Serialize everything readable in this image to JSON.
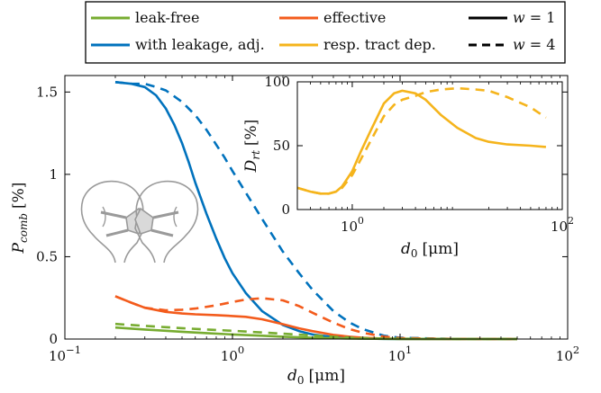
{
  "legend": {
    "items": [
      {
        "label": "leak-free",
        "color": "#77ac30",
        "dash": false
      },
      {
        "label": "effective",
        "color": "#f35b1c",
        "dash": false
      },
      {
        "label": "w = 1",
        "color": "#000000",
        "dash": false
      },
      {
        "label": "with leakage, adj.",
        "color": "#0072bd",
        "dash": false
      },
      {
        "label": "resp. tract dep.",
        "color": "#f5b41c",
        "dash": false
      },
      {
        "label": "w = 4",
        "color": "#000000",
        "dash": true
      }
    ]
  },
  "icons": [
    "head-with-mask-icon",
    "head-with-mask-icon"
  ],
  "chart_data": [
    {
      "type": "line",
      "id": "main",
      "xlabel_var": "d",
      "xlabel_sub": "0",
      "xlabel_unit": "[μm]",
      "ylabel_var": "P",
      "ylabel_sub": "comb",
      "ylabel_unit": "[%]",
      "xscale": "log",
      "xlim": [
        0.1,
        100
      ],
      "ylim": [
        0,
        1.6
      ],
      "xticks": [
        {
          "v": 0.1,
          "base": "10",
          "exp": "−1"
        },
        {
          "v": 1,
          "base": "10",
          "exp": "0"
        },
        {
          "v": 10,
          "base": "10",
          "exp": "1"
        },
        {
          "v": 100,
          "base": "10",
          "exp": "2"
        }
      ],
      "yticks": [
        {
          "v": 0,
          "label": "0"
        },
        {
          "v": 0.5,
          "label": "0.5"
        },
        {
          "v": 1,
          "label": "1"
        },
        {
          "v": 1.5,
          "label": "1.5"
        }
      ],
      "grid": false,
      "series": [
        {
          "name": "with leakage, adj.",
          "w": 1,
          "color": "#0072bd",
          "dash": false,
          "x": [
            0.2,
            0.25,
            0.3,
            0.35,
            0.4,
            0.45,
            0.5,
            0.55,
            0.6,
            0.7,
            0.8,
            0.9,
            1.0,
            1.2,
            1.5,
            2,
            2.5,
            3,
            4,
            5,
            6,
            8,
            10,
            15,
            20,
            50
          ],
          "y": [
            1.56,
            1.55,
            1.53,
            1.48,
            1.4,
            1.3,
            1.19,
            1.07,
            0.95,
            0.76,
            0.61,
            0.49,
            0.4,
            0.28,
            0.17,
            0.085,
            0.048,
            0.028,
            0.012,
            0.006,
            0.003,
            0.001,
            0.0005,
            0.0002,
            0.0001,
            0.0
          ]
        },
        {
          "name": "with leakage, adj.",
          "w": 4,
          "color": "#0072bd",
          "dash": true,
          "x": [
            0.2,
            0.25,
            0.3,
            0.35,
            0.4,
            0.5,
            0.6,
            0.7,
            0.8,
            0.9,
            1.0,
            1.2,
            1.5,
            2,
            2.5,
            3,
            4,
            5,
            6,
            8,
            10,
            20,
            50
          ],
          "y": [
            1.56,
            1.55,
            1.55,
            1.53,
            1.51,
            1.44,
            1.36,
            1.27,
            1.18,
            1.1,
            1.02,
            0.89,
            0.73,
            0.53,
            0.4,
            0.3,
            0.17,
            0.1,
            0.06,
            0.02,
            0.008,
            0.001,
            0.0
          ]
        },
        {
          "name": "effective",
          "w": 1,
          "color": "#f35b1c",
          "dash": false,
          "x": [
            0.2,
            0.25,
            0.3,
            0.4,
            0.5,
            0.6,
            0.8,
            1.0,
            1.2,
            1.5,
            2,
            2.5,
            3,
            4,
            5,
            6,
            8,
            10,
            20,
            50
          ],
          "y": [
            0.26,
            0.22,
            0.19,
            0.165,
            0.155,
            0.15,
            0.145,
            0.14,
            0.135,
            0.12,
            0.09,
            0.065,
            0.048,
            0.025,
            0.014,
            0.008,
            0.003,
            0.001,
            0.0,
            0.0
          ]
        },
        {
          "name": "effective",
          "w": 4,
          "color": "#f35b1c",
          "dash": true,
          "x": [
            0.2,
            0.25,
            0.3,
            0.4,
            0.5,
            0.6,
            0.8,
            1.0,
            1.2,
            1.5,
            2,
            2.5,
            3,
            4,
            5,
            6,
            8,
            10,
            20,
            50
          ],
          "y": [
            0.26,
            0.22,
            0.19,
            0.175,
            0.178,
            0.185,
            0.205,
            0.225,
            0.24,
            0.248,
            0.235,
            0.2,
            0.16,
            0.1,
            0.06,
            0.038,
            0.015,
            0.006,
            0.001,
            0.0
          ]
        },
        {
          "name": "leak-free",
          "w": 1,
          "color": "#77ac30",
          "dash": false,
          "x": [
            0.2,
            0.3,
            0.4,
            0.5,
            0.7,
            1.0,
            1.5,
            2,
            3,
            4,
            5,
            7,
            10,
            20,
            50
          ],
          "y": [
            0.07,
            0.058,
            0.05,
            0.044,
            0.036,
            0.028,
            0.02,
            0.014,
            0.008,
            0.005,
            0.003,
            0.0015,
            0.0007,
            0.0002,
            0.0
          ]
        },
        {
          "name": "leak-free",
          "w": 4,
          "color": "#77ac30",
          "dash": true,
          "x": [
            0.2,
            0.3,
            0.4,
            0.5,
            0.7,
            1.0,
            1.5,
            2,
            3,
            4,
            5,
            7,
            10,
            20,
            50
          ],
          "y": [
            0.092,
            0.08,
            0.072,
            0.066,
            0.058,
            0.05,
            0.04,
            0.033,
            0.022,
            0.014,
            0.009,
            0.004,
            0.0015,
            0.0003,
            0.0
          ]
        }
      ]
    },
    {
      "type": "line",
      "id": "inset",
      "xlabel_var": "d",
      "xlabel_sub": "0",
      "xlabel_unit": "[μm]",
      "ylabel_var": "D",
      "ylabel_sub": "rt",
      "ylabel_unit": "[%]",
      "xscale": "log",
      "xlim": [
        0.3,
        100
      ],
      "ylim": [
        0,
        100
      ],
      "xticks": [
        {
          "v": 1,
          "base": "10",
          "exp": "0"
        },
        {
          "v": 100,
          "base": "10",
          "exp": "2"
        }
      ],
      "yticks": [
        {
          "v": 0,
          "label": "0"
        },
        {
          "v": 50,
          "label": "50"
        },
        {
          "v": 100,
          "label": "100"
        }
      ],
      "grid": false,
      "series": [
        {
          "name": "resp. tract dep.",
          "w": 1,
          "color": "#f5b41c",
          "dash": false,
          "x": [
            0.3,
            0.4,
            0.5,
            0.6,
            0.7,
            0.8,
            1.0,
            1.2,
            1.5,
            2.0,
            2.5,
            3,
            4,
            5,
            7,
            10,
            15,
            20,
            30,
            50,
            70
          ],
          "y": [
            17,
            14,
            12.5,
            12.5,
            14,
            18,
            30,
            45,
            62,
            83,
            91,
            93,
            91,
            86,
            74,
            64,
            56,
            53,
            51,
            50,
            49
          ]
        },
        {
          "name": "resp. tract dep.",
          "w": 4,
          "color": "#f5b41c",
          "dash": true,
          "x": [
            0.3,
            0.4,
            0.5,
            0.6,
            0.7,
            0.8,
            1.0,
            1.2,
            1.5,
            2.0,
            2.5,
            3,
            4,
            5,
            7,
            10,
            15,
            20,
            30,
            50,
            70
          ],
          "y": [
            17,
            14,
            12.5,
            12.5,
            14,
            17,
            27,
            39,
            54,
            73,
            82,
            86,
            89,
            92,
            94,
            95,
            94,
            93,
            88,
            80,
            72
          ]
        }
      ]
    }
  ]
}
